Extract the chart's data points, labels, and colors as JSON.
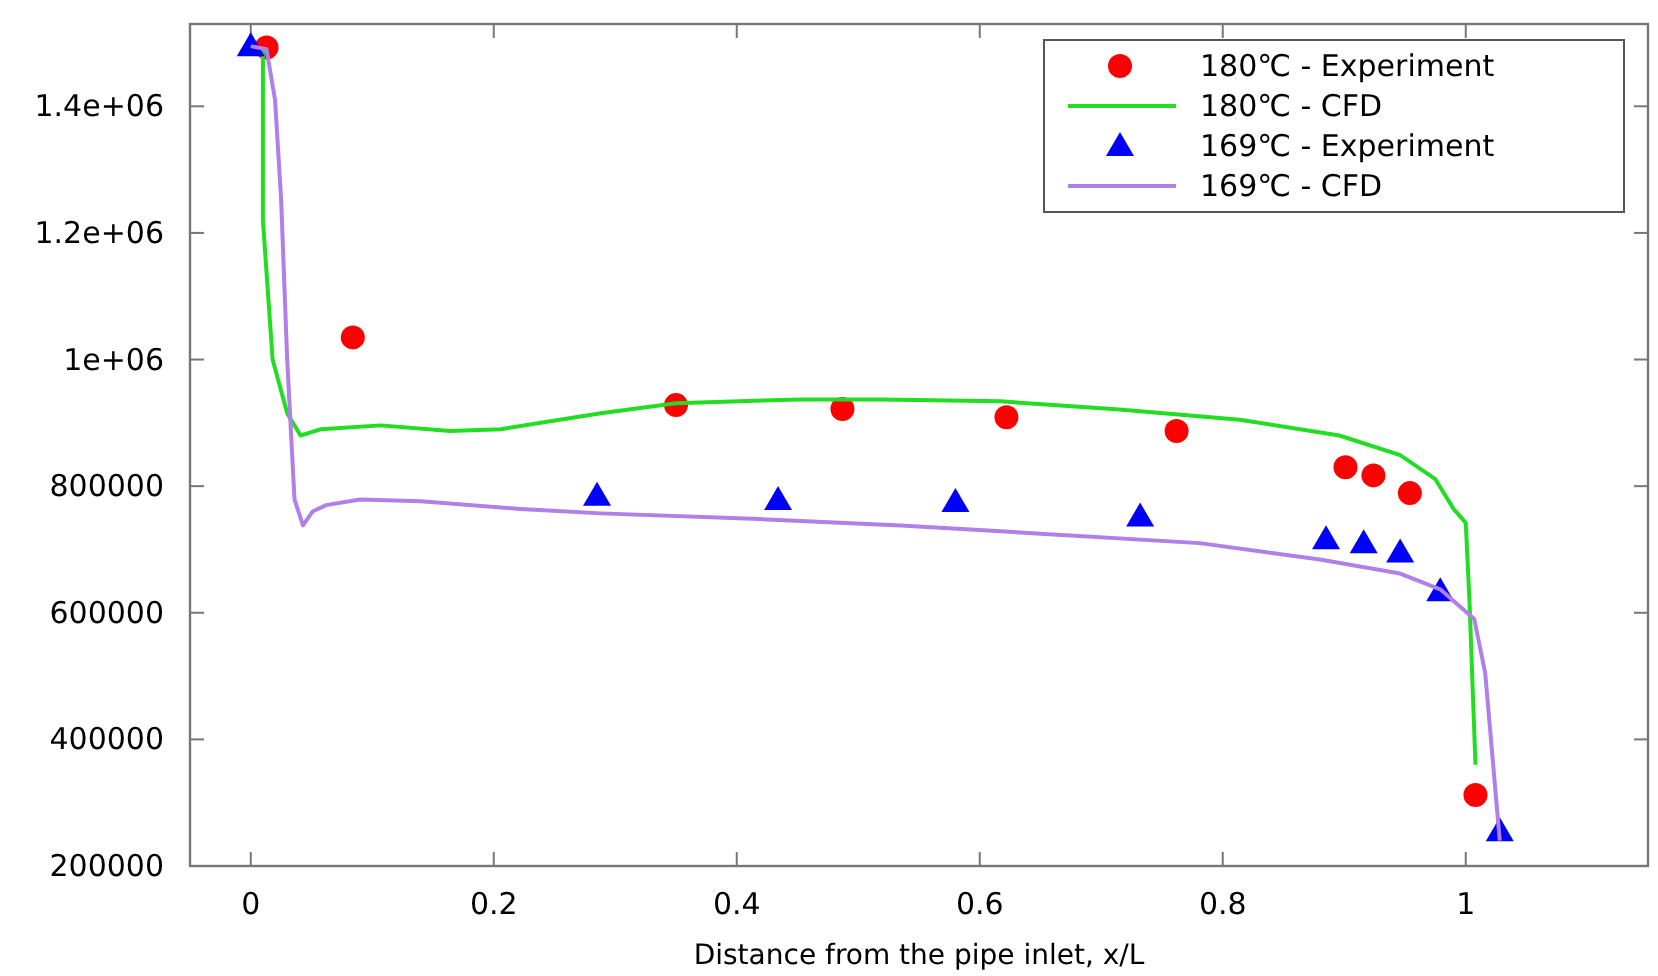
{
  "chart_data": {
    "type": "line",
    "xlabel": "Distance from the pipe inlet, x/L",
    "xlim": [
      -0.05,
      1.15
    ],
    "ylim": [
      200000,
      1530000
    ],
    "xticks": [
      0,
      0.2,
      0.4,
      0.6,
      0.8,
      1
    ],
    "yticks": [
      200000,
      400000,
      600000,
      800000,
      {
        "value": 1000000,
        "label": "1e+06"
      },
      {
        "value": 1200000,
        "label": "1.2e+06"
      },
      {
        "value": 1400000,
        "label": "1.4e+06"
      }
    ],
    "grid": false,
    "legend": "top right",
    "series": [
      {
        "name": "180℃ - Experiment",
        "type": "scatter",
        "marker": "circle",
        "color": "#ff0000",
        "x": [
          0.013,
          0.084,
          0.35,
          0.487,
          0.622,
          0.762,
          0.901,
          0.924,
          0.954,
          1.008
        ],
        "values": [
          1493000,
          1035000,
          928000,
          922000,
          909000,
          887000,
          830000,
          817000,
          789000,
          312000
        ]
      },
      {
        "name": "180℃ - CFD",
        "marker": "none",
        "color": "#22dd22",
        "x": [
          0.01,
          0.01,
          0.01,
          0.018,
          0.03,
          0.041,
          0.058,
          0.107,
          0.164,
          0.206,
          0.288,
          0.35,
          0.452,
          0.518,
          0.617,
          0.715,
          0.814,
          0.896,
          0.946,
          0.975,
          0.99,
          1.0,
          1.003,
          1.008
        ],
        "values": [
          1490000,
          1395000,
          1220000,
          1000000,
          915000,
          880000,
          890000,
          896000,
          887000,
          890000,
          915000,
          931000,
          937000,
          937000,
          934000,
          921000,
          905000,
          880000,
          849000,
          811000,
          764000,
          742000,
          622000,
          360000
        ]
      },
      {
        "name": "169℃ - Experiment",
        "type": "scatter",
        "marker": "triangle",
        "color": "#0000ff",
        "x": [
          0,
          0.285,
          0.434,
          0.58,
          0.732,
          0.885,
          0.916,
          0.946,
          0.979,
          1.028
        ],
        "values": [
          1495000,
          785000,
          778000,
          775000,
          752000,
          716000,
          710000,
          695000,
          634000,
          255000
        ]
      },
      {
        "name": "169℃ - CFD",
        "marker": "none",
        "color": "#b07fe8",
        "x": [
          0,
          0.013,
          0.02,
          0.025,
          0.03,
          0.036,
          0.043,
          0.051,
          0.062,
          0.09,
          0.14,
          0.222,
          0.288,
          0.419,
          0.535,
          0.65,
          0.781,
          0.88,
          0.946,
          0.979,
          1.007,
          1.016,
          1.028
        ],
        "values": [
          1495000,
          1490000,
          1410000,
          1253000,
          1000000,
          779000,
          738000,
          760000,
          770000,
          779000,
          776000,
          764000,
          757000,
          748000,
          738000,
          725000,
          710000,
          684000,
          662000,
          637000,
          590000,
          505000,
          240000
        ]
      }
    ]
  }
}
